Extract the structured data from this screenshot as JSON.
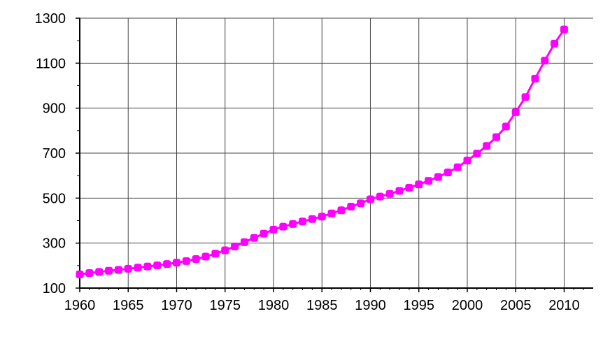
{
  "chart_data": {
    "type": "line",
    "title": "",
    "xlabel": "",
    "ylabel": "",
    "xlim": [
      1960,
      2013
    ],
    "ylim": [
      100,
      1300
    ],
    "x_ticks": [
      "1960",
      "1965",
      "1970",
      "1975",
      "1980",
      "1985",
      "1990",
      "1995",
      "2000",
      "2005",
      "2010"
    ],
    "y_ticks": [
      "100",
      "300",
      "500",
      "700",
      "900",
      "1100",
      "1300"
    ],
    "grid": true,
    "colors": {
      "series": "#ff00ff",
      "grid": "#444444",
      "axis": "#000000"
    },
    "series": [
      {
        "x": [
          1960,
          1961,
          1962,
          1963,
          1964,
          1965,
          1966,
          1967,
          1968,
          1969,
          1970,
          1971,
          1972,
          1973,
          1974,
          1975,
          1976,
          1977,
          1978,
          1979,
          1980,
          1981,
          1982,
          1983,
          1984,
          1985,
          1986,
          1987,
          1988,
          1989,
          1990,
          1991,
          1992,
          1993,
          1994,
          1995,
          1996,
          1997,
          1998,
          1999,
          2000,
          2001,
          2002,
          2003,
          2004,
          2005,
          2006,
          2007,
          2008,
          2009,
          2010
        ],
        "values": [
          161,
          167,
          172,
          177,
          181,
          186,
          191,
          196,
          201,
          207,
          213,
          220,
          229,
          240,
          253,
          268,
          285,
          304,
          323,
          342,
          360,
          373,
          385,
          396,
          407,
          418,
          432,
          446,
          462,
          477,
          495,
          507,
          519,
          532,
          546,
          561,
          577,
          594,
          614,
          637,
          667,
          698,
          732,
          771,
          818,
          882,
          949,
          1031,
          1111,
          1187,
          1250
        ]
      }
    ]
  }
}
